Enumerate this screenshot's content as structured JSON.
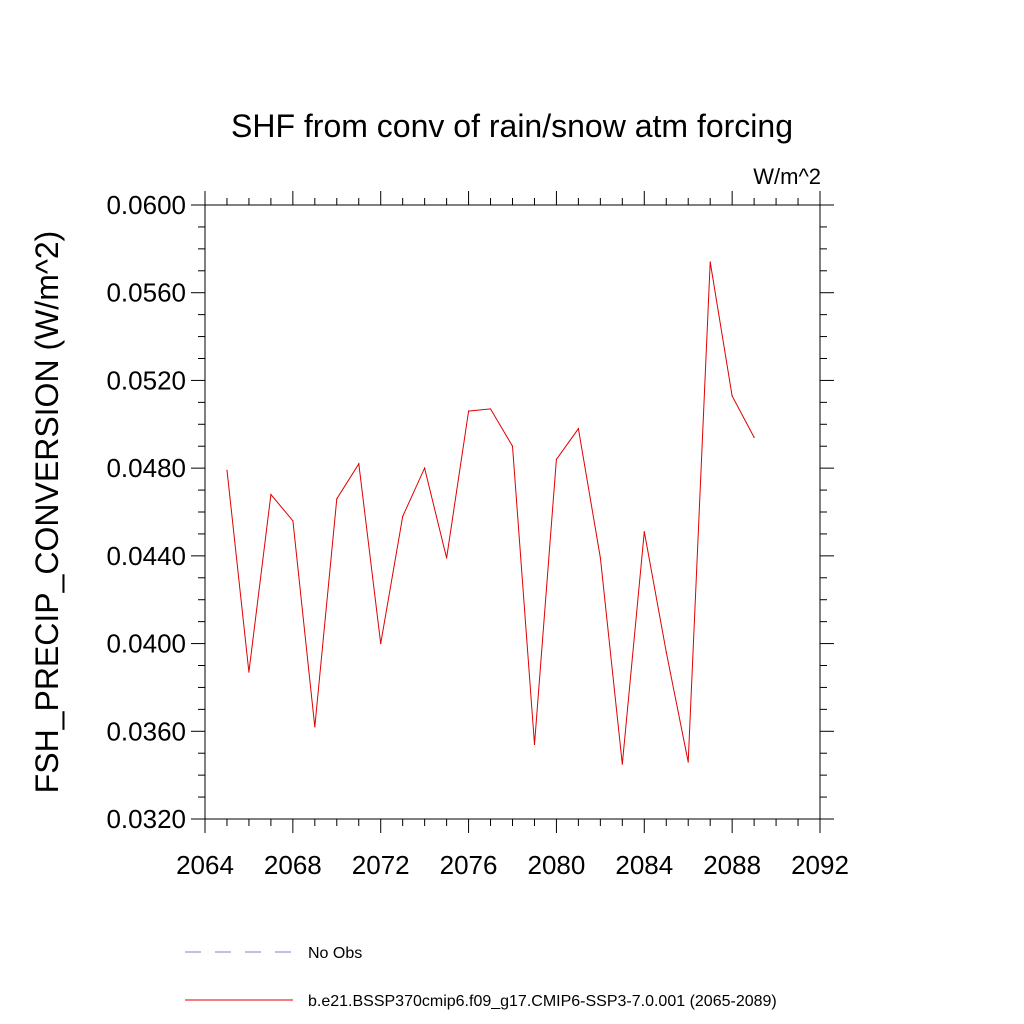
{
  "chart_data": {
    "type": "line",
    "title": "SHF from conv of rain/snow atm forcing",
    "units_label": "W/m^2",
    "xlabel": "",
    "ylabel": "FSH_PRECIP_CONVERSION  (W/m^2)",
    "xlim": [
      2064,
      2092
    ],
    "ylim": [
      0.032,
      0.06
    ],
    "x_ticks": [
      2064,
      2068,
      2072,
      2076,
      2080,
      2084,
      2088,
      2092
    ],
    "x_tick_labels": [
      "2064",
      "2068",
      "2072",
      "2076",
      "2080",
      "2084",
      "2088",
      "2092"
    ],
    "y_ticks": [
      0.032,
      0.036,
      0.04,
      0.044,
      0.048,
      0.052,
      0.056,
      0.06
    ],
    "y_tick_labels": [
      "0.0320",
      "0.0360",
      "0.0400",
      "0.0440",
      "0.0480",
      "0.0520",
      "0.0560",
      "0.0600"
    ],
    "grid": false,
    "legend_placement": "bottom",
    "series": [
      {
        "name": "No Obs",
        "color": "#8080c8",
        "dashed": true,
        "x": [],
        "values": []
      },
      {
        "name": "b.e21.BSSP370cmip6.f09_g17.CMIP6-SSP3-7.0.001 (2065-2089)",
        "color": "#e00000",
        "dashed": false,
        "x": [
          2065,
          2066,
          2067,
          2068,
          2069,
          2070,
          2071,
          2072,
          2073,
          2074,
          2075,
          2076,
          2077,
          2078,
          2079,
          2080,
          2081,
          2082,
          2083,
          2084,
          2085,
          2086,
          2087,
          2088,
          2089
        ],
        "values": [
          0.0479,
          0.0387,
          0.0468,
          0.0456,
          0.0362,
          0.0466,
          0.0482,
          0.04,
          0.0458,
          0.048,
          0.0439,
          0.0506,
          0.0507,
          0.049,
          0.0354,
          0.0484,
          0.0498,
          0.0439,
          0.0345,
          0.0451,
          0.0396,
          0.0346,
          0.0574,
          0.0513,
          0.0494
        ]
      }
    ]
  }
}
